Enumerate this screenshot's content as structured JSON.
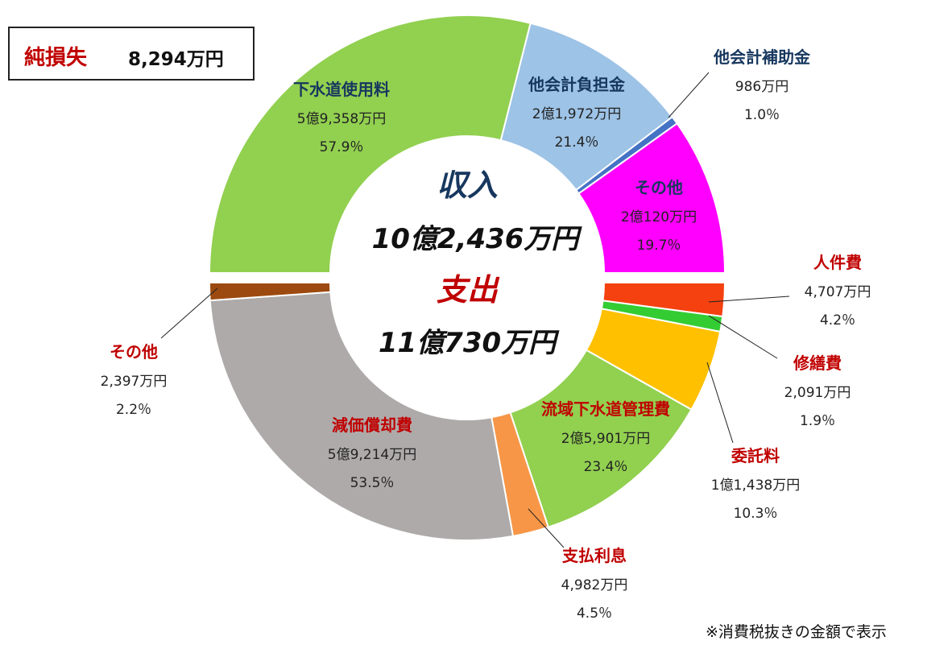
{
  "net_loss": {
    "label": "純損失",
    "value": "8,294万円"
  },
  "footnote": "※消費税抜きの金額で表示",
  "center": {
    "income_title": "収入",
    "income_total": "10億2,436万円",
    "expense_title": "支出",
    "expense_total": "11億730万円"
  },
  "colors": {
    "income_title": "#17375e",
    "expense_title": "#c00000",
    "income_labels": "#17375e",
    "expense_labels": "#c00000"
  },
  "chart_data": [
    {
      "type": "pie",
      "name": "収入",
      "total": "10億2,436万円",
      "slices": [
        {
          "label": "他会計負担金",
          "amount": "2億1,972万円",
          "percent_text": "21.4％",
          "percent": 21.4,
          "color": "#9dc3e6"
        },
        {
          "label": "他会計補助金",
          "amount": "986万円",
          "percent_text": "1.0％",
          "percent": 1.0,
          "color": "#4472c4"
        },
        {
          "label": "その他",
          "amount": "2億120万円",
          "percent_text": "19.7％",
          "percent": 19.7,
          "color": "#ff00ff"
        },
        {
          "label": "下水道使用料",
          "amount": "5億9,358万円",
          "percent_text": "57.9％",
          "percent": 57.9,
          "color": "#92d050"
        }
      ]
    },
    {
      "type": "pie",
      "name": "支出",
      "total": "11億730万円",
      "slices": [
        {
          "label": "人件費",
          "amount": "4,707万円",
          "percent_text": "4.2％",
          "percent": 4.2,
          "color": "#f4410f"
        },
        {
          "label": "修繕費",
          "amount": "2,091万円",
          "percent_text": "1.9％",
          "percent": 1.9,
          "color": "#33cc33"
        },
        {
          "label": "委託料",
          "amount": "1億1,438万円",
          "percent_text": "10.3％",
          "percent": 10.3,
          "color": "#ffc000"
        },
        {
          "label": "流域下水道管理費",
          "amount": "2億5,901万円",
          "percent_text": "23.4％",
          "percent": 23.4,
          "color": "#92d050"
        },
        {
          "label": "支払利息",
          "amount": "4,982万円",
          "percent_text": "4.5％",
          "percent": 4.5,
          "color": "#f79646"
        },
        {
          "label": "減価償却費",
          "amount": "5億9,214万円",
          "percent_text": "53.5％",
          "percent": 53.5,
          "color": "#aeaaaa"
        },
        {
          "label": "その他",
          "amount": "2,397万円",
          "percent_text": "2.2％",
          "percent": 2.2,
          "color": "#9c4a0f"
        }
      ]
    }
  ]
}
